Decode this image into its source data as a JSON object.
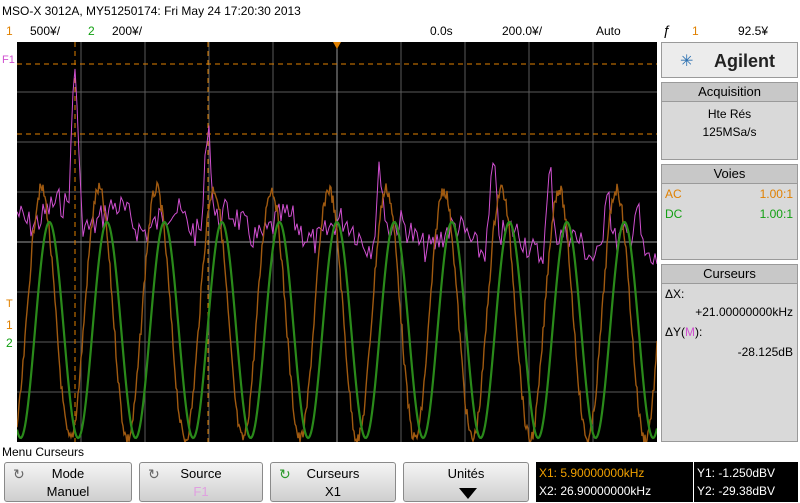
{
  "header": {
    "title": "MSO-X 3012A, MY51250174: Fri May 24 17:20:30 2013",
    "ch1_num": "1",
    "ch1_scale": "500¥/",
    "ch2_num": "2",
    "ch2_scale": "200¥/",
    "time_offset": "0.0s",
    "time_scale": "200.0¥/",
    "trigger_mode": "Auto",
    "trigger_symbol": "ƒ",
    "trigger_ch": "1",
    "trigger_level": "92.5¥"
  },
  "screen": {
    "math_label": "F1",
    "ch1_marker": "1",
    "ch2_marker": "2",
    "trig_marker": "T"
  },
  "sidebar": {
    "brand": "Agilent",
    "acq_title": "Acquisition",
    "acq_mode": "Hte Rés",
    "acq_rate": "125MSa/s",
    "voies_title": "Voies",
    "voie1_coupling": "AC",
    "voie1_ratio": "1.00:1",
    "voie2_coupling": "DC",
    "voie2_ratio": "1.00:1",
    "curs_title": "Curseurs",
    "dx_label": "ΔX:",
    "dx_value": "+21.00000000kHz",
    "dy_label": "ΔY(",
    "dy_src": "M",
    "dy_label_end": "):",
    "dy_value": "-28.125dB"
  },
  "menu": {
    "title": "Menu Curseurs",
    "mode_label": "Mode",
    "mode_value": "Manuel",
    "source_label": "Source",
    "source_value": "F1",
    "curseurs_label": "Curseurs",
    "curseurs_value": "X1",
    "unites_label": "Unités"
  },
  "cursors": {
    "x1": "X1: 5.90000000kHz",
    "x2": "X2: 26.90000000kHz",
    "y1": "Y1: -1.250dBV",
    "y2": "Y2: -29.38dBV"
  },
  "colors": {
    "ch1": "#e08000",
    "ch2": "#12a012",
    "math": "#d050d0",
    "ch1_trace": "#a05a10",
    "ch2_trace": "#2a8a1a"
  }
}
